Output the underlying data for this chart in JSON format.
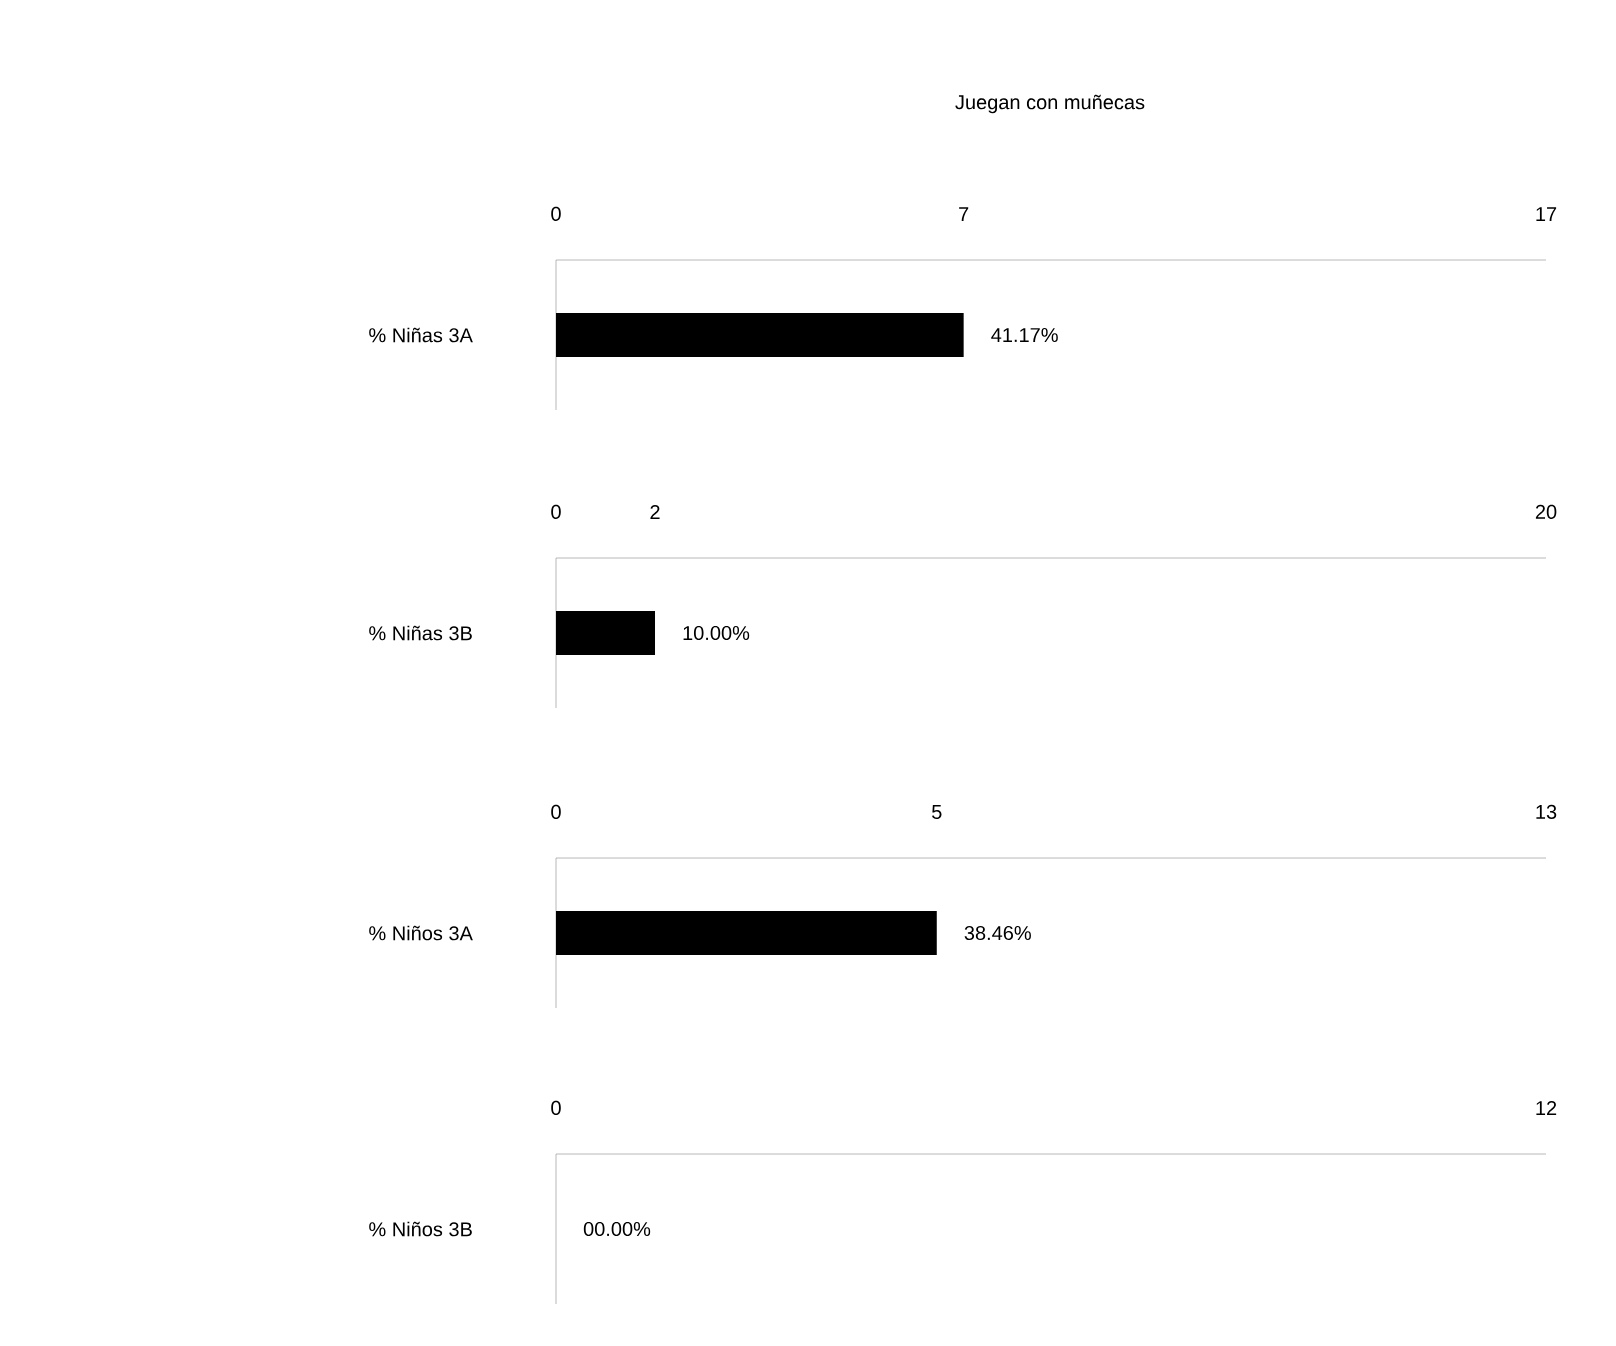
{
  "chart_data": [
    {
      "type": "bar",
      "orientation": "horizontal",
      "title": "Juegan con muñecas",
      "categories": [
        "% Niñas 3A"
      ],
      "values": [
        7
      ],
      "xlim": [
        0,
        17
      ],
      "xticks": [
        0,
        7,
        17
      ],
      "annotations": [
        {
          "text": "41.17%",
          "x": 7,
          "y": "% Niñas 3A"
        }
      ],
      "color": "#000000"
    },
    {
      "type": "bar",
      "orientation": "horizontal",
      "categories": [
        "% Niñas 3B"
      ],
      "values": [
        2
      ],
      "xlim": [
        0,
        20
      ],
      "xticks": [
        0,
        2,
        20
      ],
      "annotations": [
        {
          "text": "10.00%",
          "x": 2,
          "y": "% Niñas 3B"
        }
      ],
      "color": "#000000"
    },
    {
      "type": "bar",
      "orientation": "horizontal",
      "categories": [
        "% Niños 3A"
      ],
      "values": [
        5
      ],
      "xlim": [
        0,
        13
      ],
      "xticks": [
        0,
        5,
        13
      ],
      "annotations": [
        {
          "text": "38.46%",
          "x": 5,
          "y": "% Niños 3A"
        }
      ],
      "color": "#000000"
    },
    {
      "type": "bar",
      "orientation": "horizontal",
      "categories": [
        "% Niños 3B"
      ],
      "values": [
        0
      ],
      "xlim": [
        0,
        12
      ],
      "xticks": [
        0,
        12
      ],
      "annotations": [
        {
          "text": "00.00%",
          "x": 0,
          "y": "% Niños 3B"
        }
      ],
      "color": "#000000"
    }
  ]
}
